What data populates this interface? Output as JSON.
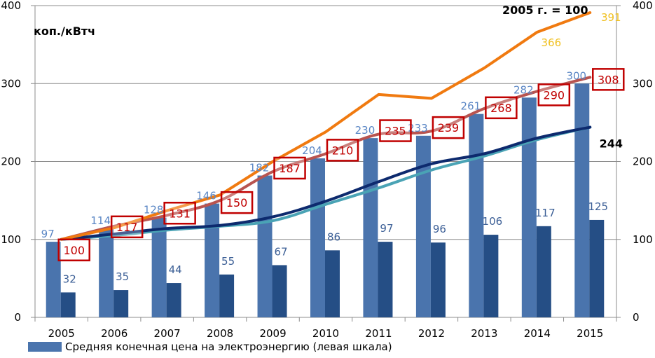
{
  "chart_data": {
    "type": "bar",
    "title": "",
    "unit_label": "коп./кВтч",
    "index_note": "2005 г. = 100",
    "categories": [
      "2005",
      "2006",
      "2007",
      "2008",
      "2009",
      "2010",
      "2011",
      "2012",
      "2013",
      "2014",
      "2015"
    ],
    "ylim": [
      0,
      400
    ],
    "yticks": [
      0,
      100,
      200,
      300,
      400
    ],
    "y2lim": [
      0,
      400
    ],
    "y2ticks": [
      0,
      100,
      200,
      300,
      400
    ],
    "grid": true,
    "legend_position": "bottom-left",
    "series": [
      {
        "name": "Средняя конечная цена на электроэнергию (левая шкала)",
        "kind": "bar",
        "axis": "left",
        "color": "#4a74ad",
        "label_color": "#5b87c5",
        "values": [
          97,
          114,
          128,
          146,
          182,
          204,
          230,
          233,
          261,
          282,
          300
        ],
        "show_labels": true
      },
      {
        "name": "bar-series-2",
        "kind": "bar",
        "axis": "left",
        "color": "#254e85",
        "label_color": "#3c5f96",
        "values": [
          32,
          35,
          44,
          55,
          67,
          86,
          97,
          96,
          106,
          117,
          125
        ],
        "show_labels": true
      },
      {
        "name": "line-index-red",
        "kind": "line",
        "axis": "right",
        "color": "#b85450",
        "values": [
          100,
          117,
          131,
          150,
          187,
          210,
          235,
          239,
          268,
          290,
          308
        ],
        "show_labels": true,
        "label_style": "boxed"
      },
      {
        "name": "line-index-orange",
        "kind": "line",
        "axis": "right",
        "color": "#f07a10",
        "values": [
          100,
          115,
          137,
          157,
          200,
          238,
          286,
          281,
          320,
          366,
          391
        ],
        "labels_shown": {
          "9": "366",
          "10": "391"
        }
      },
      {
        "name": "line-index-teal",
        "kind": "line",
        "axis": "right",
        "color": "#4aa3b5",
        "values": [
          100,
          105,
          112,
          117,
          124,
          145,
          166,
          189,
          207,
          228,
          244
        ]
      },
      {
        "name": "line-index-navy",
        "kind": "line",
        "axis": "right",
        "color": "#0d2a6e",
        "values": [
          100,
          107,
          114,
          118,
          129,
          149,
          174,
          197,
          210,
          230,
          244
        ],
        "labels_shown": {
          "10": "244"
        }
      }
    ]
  }
}
